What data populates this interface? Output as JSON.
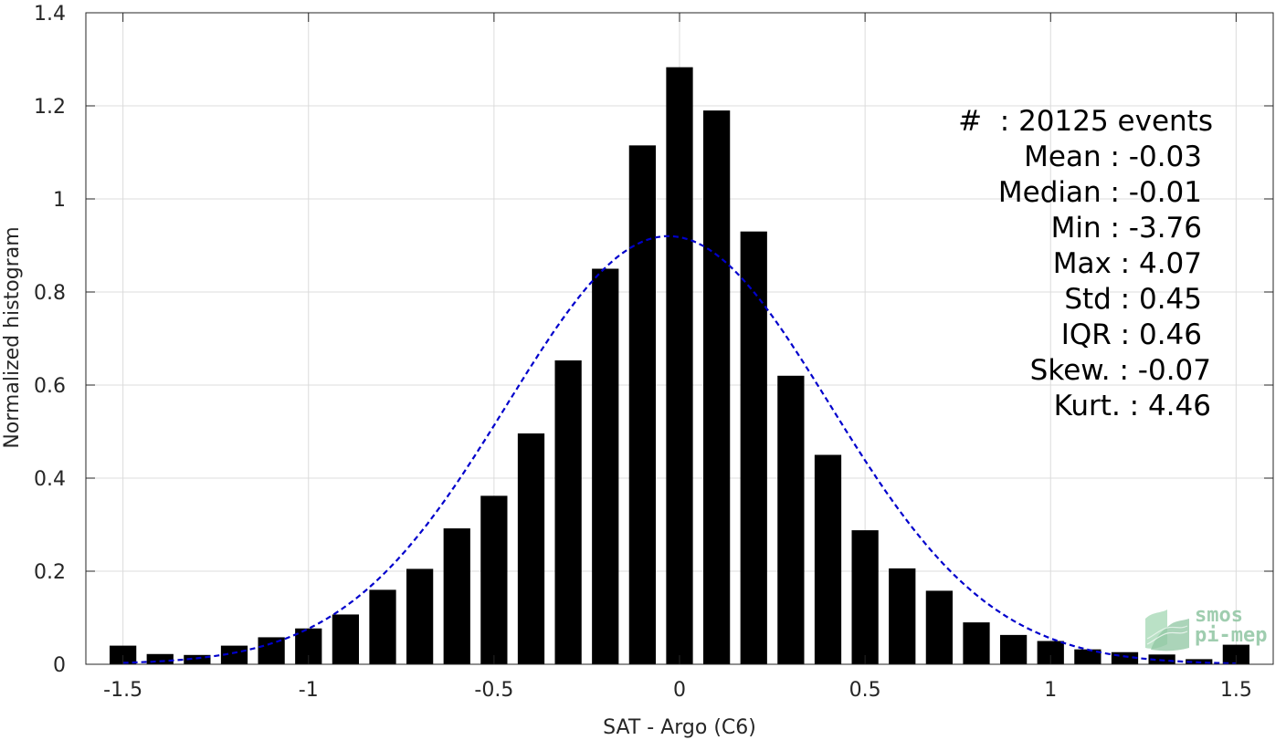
{
  "chart_data": {
    "type": "bar",
    "xlabel": "SAT - Argo (C6)",
    "ylabel": "Normalized histogram",
    "xlim": [
      -1.6,
      1.6
    ],
    "ylim": [
      0,
      1.4
    ],
    "xticks": [
      "-1.5",
      "-1",
      "-0.5",
      "0",
      "0.5",
      "1",
      "1.5"
    ],
    "xtick_values": [
      -1.5,
      -1,
      -0.5,
      0,
      0.5,
      1,
      1.5
    ],
    "yticks": [
      "0",
      "0.2",
      "0.4",
      "0.6",
      "0.8",
      "1",
      "1.2",
      "1.4"
    ],
    "ytick_values": [
      0,
      0.2,
      0.4,
      0.6,
      0.8,
      1.0,
      1.2,
      1.4
    ],
    "grid": true,
    "bar_color": "#000000",
    "bar_width": 0.072,
    "bins": [
      -1.5,
      -1.4,
      -1.3,
      -1.2,
      -1.1,
      -1.0,
      -0.9,
      -0.8,
      -0.7,
      -0.6,
      -0.5,
      -0.4,
      -0.3,
      -0.2,
      -0.1,
      0.0,
      0.1,
      0.2,
      0.3,
      0.4,
      0.5,
      0.6,
      0.7,
      0.8,
      0.9,
      1.0,
      1.1,
      1.2,
      1.3,
      1.4,
      1.5
    ],
    "values": [
      0.04,
      0.022,
      0.02,
      0.04,
      0.058,
      0.077,
      0.107,
      0.16,
      0.205,
      0.292,
      0.362,
      0.496,
      0.653,
      0.85,
      1.115,
      1.283,
      1.19,
      0.93,
      0.62,
      0.45,
      0.288,
      0.206,
      0.158,
      0.09,
      0.063,
      0.05,
      0.032,
      0.026,
      0.021,
      0.011,
      0.042
    ],
    "fit_curve": {
      "style": "dashed",
      "color": "#0000cc",
      "mean": -0.03,
      "std": 0.435,
      "peak": 0.92,
      "x_range": [
        -1.5,
        1.5
      ]
    }
  },
  "stats": {
    "count": "#  : 20125 events",
    "mean": "Mean : -0.03",
    "median": "Median : -0.01",
    "min": "Min : -3.76",
    "max": "Max : 4.07",
    "std": "Std : 0.45",
    "iqr": "IQR : 0.46",
    "skew": "Skew. : -0.07",
    "kurt": "Kurt. : 4.46"
  },
  "logo": {
    "line1": "smos",
    "line2": "pi-mep",
    "color": "#8fc5a2"
  }
}
